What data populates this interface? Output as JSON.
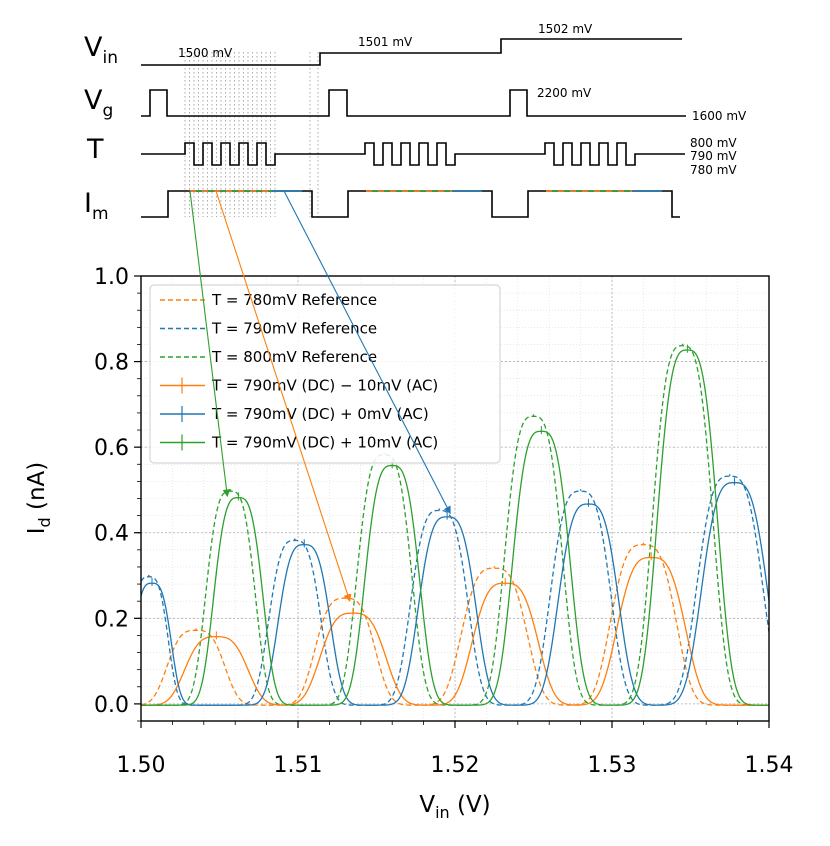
{
  "timing_diagram": {
    "rows": [
      {
        "id": "vin",
        "label": "V",
        "subscript": "in"
      },
      {
        "id": "vg",
        "label": "V",
        "subscript": "g"
      },
      {
        "id": "t",
        "label": "T",
        "subscript": ""
      },
      {
        "id": "im",
        "label": "I",
        "subscript": "m"
      }
    ],
    "vin_levels": [
      "1500 mV",
      "1501 mV",
      "1502 mV"
    ],
    "vg_high": "2200 mV",
    "vg_low": "1600 mV",
    "t_levels": [
      "800 mV",
      "790 mV",
      "780 mV"
    ],
    "colors": {
      "line": "#000000",
      "guide": "#aaaaaa"
    }
  },
  "chart_data": {
    "type": "line",
    "title": "",
    "xlabel": "V",
    "xlabel_sub": "in",
    "xlabel_unit": " (V)",
    "ylabel": "I",
    "ylabel_sub": "d",
    "ylabel_unit": " (nA)",
    "xlim": [
      1.5,
      1.54
    ],
    "ylim": [
      -0.04,
      1.0
    ],
    "xticks": [
      1.5,
      1.51,
      1.52,
      1.53,
      1.54
    ],
    "xtick_labels": [
      "1.50",
      "1.51",
      "1.52",
      "1.53",
      "1.54"
    ],
    "yticks": [
      0.0,
      0.2,
      0.4,
      0.6,
      0.8,
      1.0
    ],
    "ytick_labels": [
      "0.0",
      "0.2",
      "0.4",
      "0.6",
      "0.8",
      "1.0"
    ],
    "grid": true,
    "legend_position": "top-left",
    "legend": [
      {
        "label": "T = 780mV Reference",
        "color": "#ff7f0e",
        "style": "dashed"
      },
      {
        "label": "T = 790mV Reference",
        "color": "#1f77b4",
        "style": "dashed"
      },
      {
        "label": "T = 800mV  Reference",
        "color": "#2ca02c",
        "style": "dashed"
      },
      {
        "label": "T = 790mV (DC) − 10mV (AC)",
        "color": "#ff7f0e",
        "style": "solid"
      },
      {
        "label": "T = 790mV (DC)  +  0mV (AC)",
        "color": "#1f77b4",
        "style": "solid"
      },
      {
        "label": "T = 790mV (DC) + 10mV (AC)",
        "color": "#2ca02c",
        "style": "solid"
      }
    ],
    "series": [
      {
        "name": "T = 780mV Reference",
        "color": "#ff7f0e",
        "style": "dashed",
        "peaks": [
          [
            1.5035,
            0.175,
            0.0021
          ],
          [
            1.513,
            0.25,
            0.0022
          ],
          [
            1.5225,
            0.32,
            0.0024
          ],
          [
            1.532,
            0.375,
            0.0024
          ]
        ]
      },
      {
        "name": "T = 790mV Reference",
        "color": "#1f77b4",
        "style": "dashed",
        "peaks": [
          [
            1.5005,
            0.3,
            0.0014
          ],
          [
            1.5098,
            0.385,
            0.0019
          ],
          [
            1.519,
            0.455,
            0.0021
          ],
          [
            1.528,
            0.5,
            0.0022
          ],
          [
            1.5375,
            0.535,
            0.0024
          ]
        ]
      },
      {
        "name": "T = 800mV  Reference",
        "color": "#2ca02c",
        "style": "dashed",
        "peaks": [
          [
            1.5057,
            0.5,
            0.0018
          ],
          [
            1.5155,
            0.585,
            0.002
          ],
          [
            1.525,
            0.675,
            0.0021
          ],
          [
            1.5345,
            0.84,
            0.0022
          ]
        ]
      },
      {
        "name": "T = 790mV (DC) − 10mV (AC)",
        "color": "#ff7f0e",
        "style": "solid",
        "peaks": [
          [
            1.5048,
            0.16,
            0.0023
          ],
          [
            1.5135,
            0.215,
            0.0024
          ],
          [
            1.5232,
            0.285,
            0.0024
          ],
          [
            1.5325,
            0.345,
            0.0025
          ]
        ]
      },
      {
        "name": "T = 790mV (DC)  +  0mV (AC)",
        "color": "#1f77b4",
        "style": "solid",
        "peaks": [
          [
            1.5007,
            0.285,
            0.0014
          ],
          [
            1.5104,
            0.375,
            0.0019
          ],
          [
            1.5195,
            0.44,
            0.0021
          ],
          [
            1.5285,
            0.47,
            0.0022
          ],
          [
            1.5378,
            0.52,
            0.0024
          ]
        ]
      },
      {
        "name": "T = 790mV (DC) + 10mV (AC)",
        "color": "#2ca02c",
        "style": "solid",
        "peaks": [
          [
            1.5062,
            0.485,
            0.0018
          ],
          [
            1.516,
            0.56,
            0.002
          ],
          [
            1.5255,
            0.64,
            0.0021
          ],
          [
            1.5348,
            0.83,
            0.0022
          ]
        ]
      }
    ],
    "annotations": [
      {
        "from": "im-green-start",
        "to": [
          1.5055,
          0.485
        ],
        "color": "#2ca02c"
      },
      {
        "from": "im-orange-start",
        "to": [
          1.5133,
          0.24
        ],
        "color": "#ff7f0e"
      },
      {
        "from": "im-blue-start",
        "to": [
          1.5197,
          0.445
        ],
        "color": "#1f77b4"
      }
    ]
  }
}
